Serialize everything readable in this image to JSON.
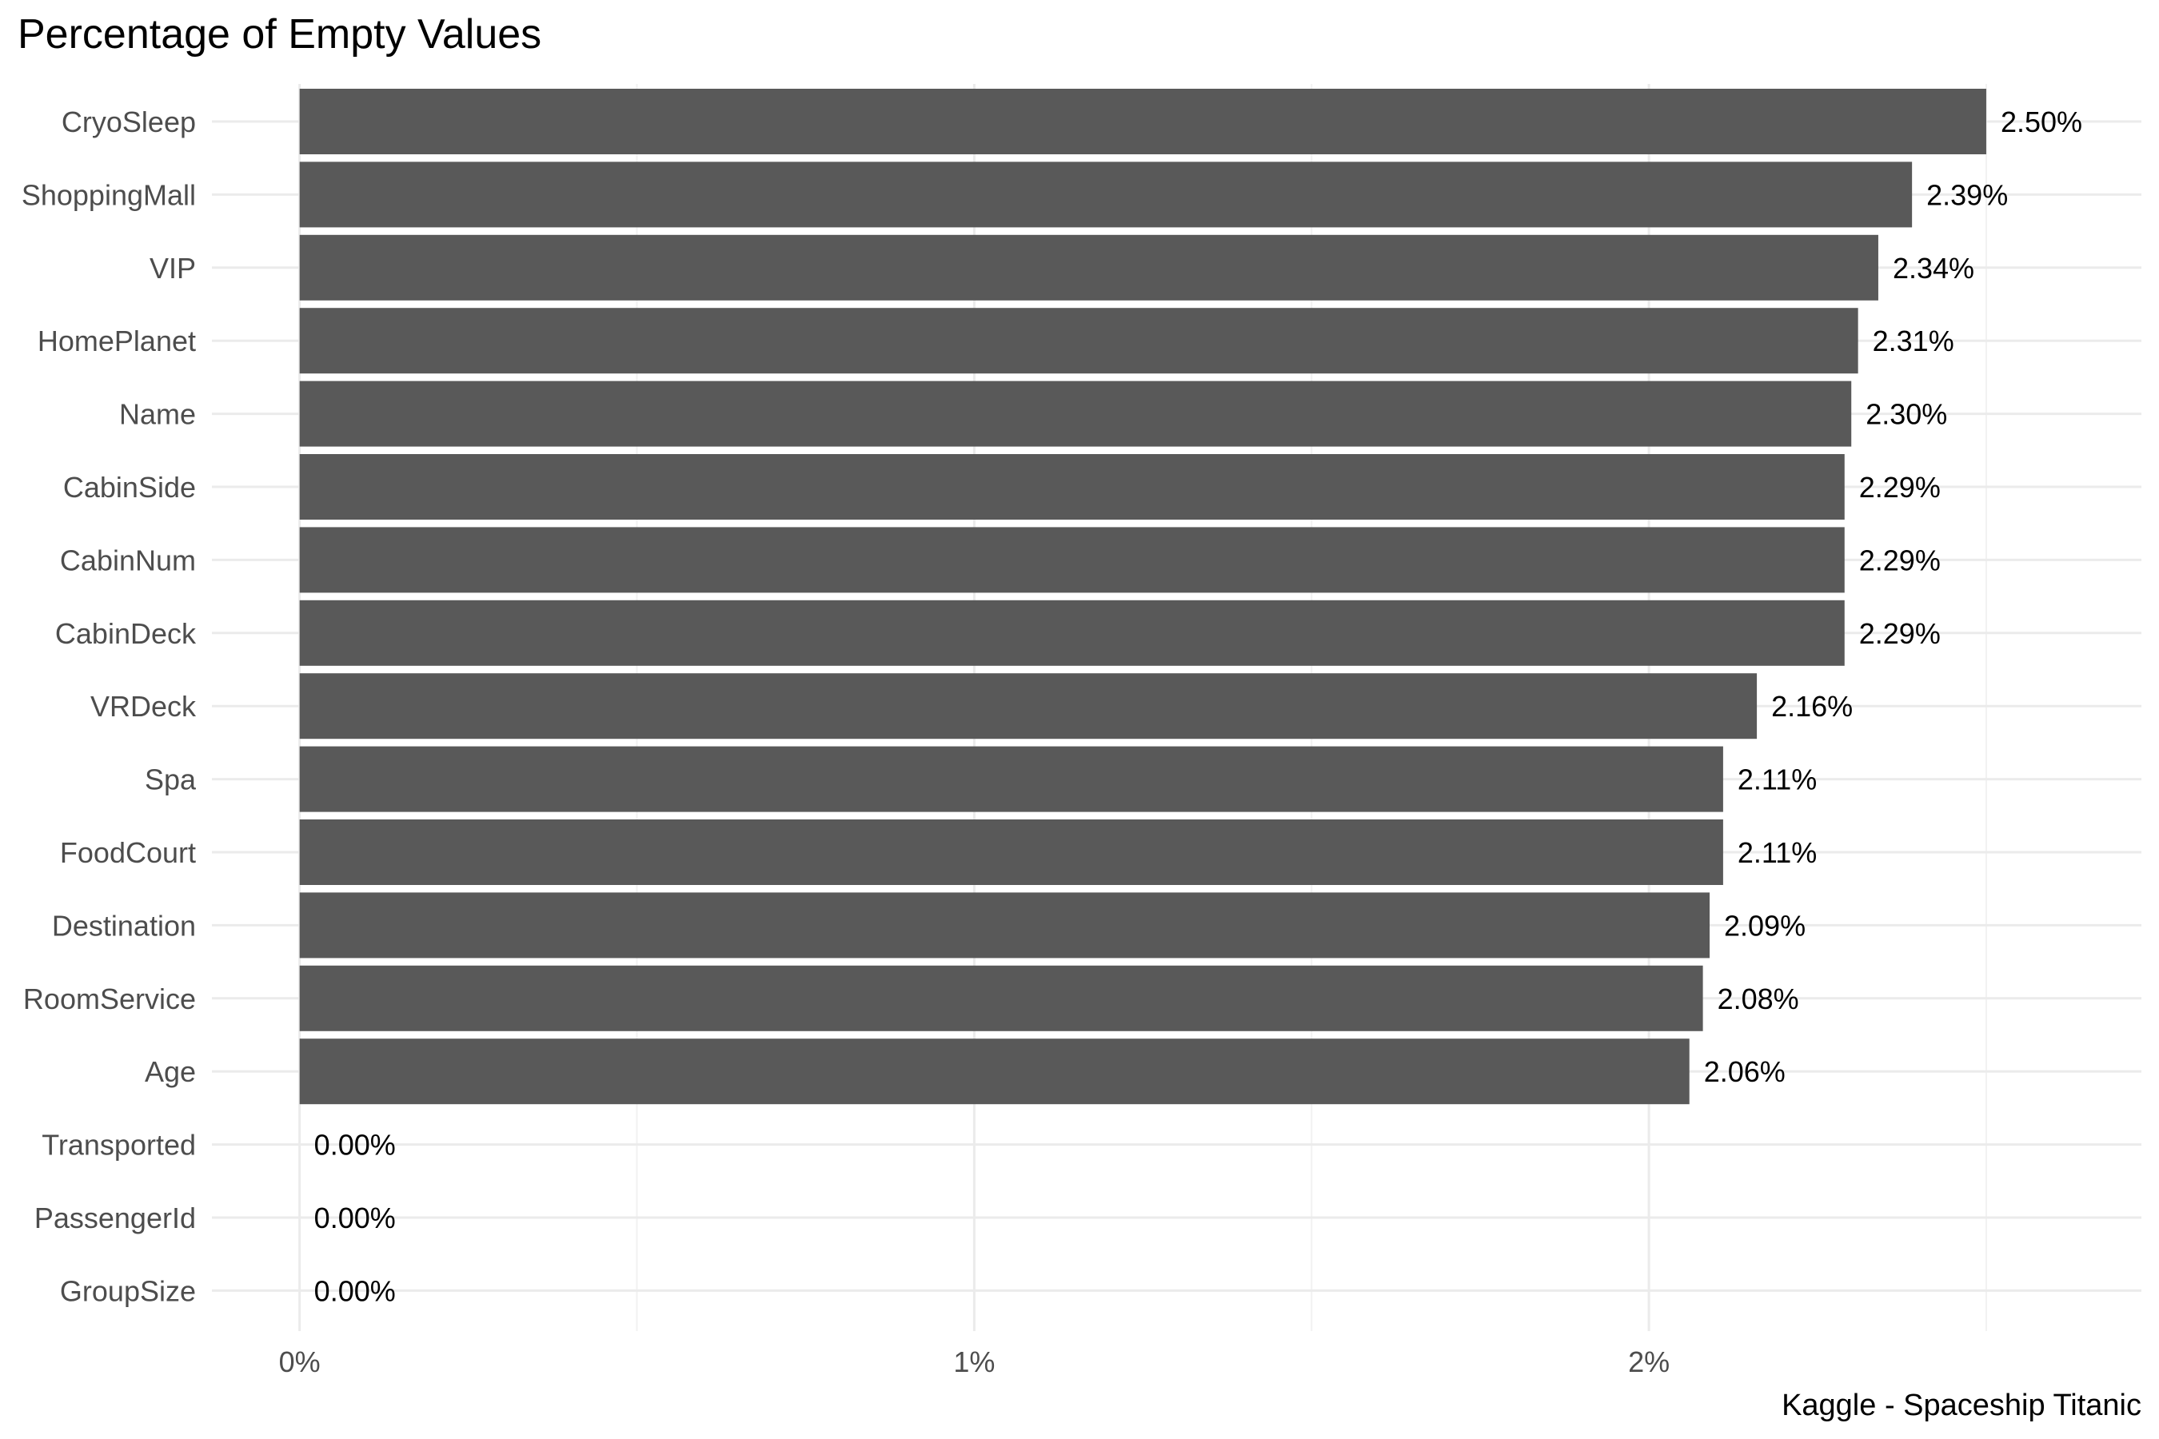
{
  "chart_data": {
    "type": "bar",
    "orientation": "horizontal",
    "title": "Percentage of Empty Values",
    "caption": "Kaggle - Spaceship Titanic",
    "xlabel": "",
    "ylabel": "",
    "categories": [
      "CryoSleep",
      "ShoppingMall",
      "VIP",
      "HomePlanet",
      "Name",
      "CabinSide",
      "CabinNum",
      "CabinDeck",
      "VRDeck",
      "Spa",
      "FoodCourt",
      "Destination",
      "RoomService",
      "Age",
      "Transported",
      "PassengerId",
      "GroupSize"
    ],
    "values": [
      2.5,
      2.39,
      2.34,
      2.31,
      2.3,
      2.29,
      2.29,
      2.29,
      2.16,
      2.11,
      2.11,
      2.09,
      2.08,
      2.06,
      0.0,
      0.0,
      0.0
    ],
    "data_labels": [
      "2.50%",
      "2.39%",
      "2.34%",
      "2.31%",
      "2.30%",
      "2.29%",
      "2.29%",
      "2.29%",
      "2.16%",
      "2.11%",
      "2.11%",
      "2.09%",
      "2.08%",
      "2.06%",
      "0.00%",
      "0.00%",
      "0.00%"
    ],
    "xlim": [
      -0.13,
      2.73
    ],
    "x_ticks": [
      0,
      1,
      2
    ],
    "x_tick_labels": [
      "0%",
      "1%",
      "2%"
    ],
    "x_minor_ticks": [
      0.5,
      1.5,
      2.5
    ],
    "grid": true,
    "legend": "none",
    "colors": {
      "bar": "#595959",
      "grid_major": "#ebebeb",
      "grid_minor": "#f2f2f2",
      "axis_text": "#4d4d4d",
      "label_text": "#000000"
    }
  }
}
